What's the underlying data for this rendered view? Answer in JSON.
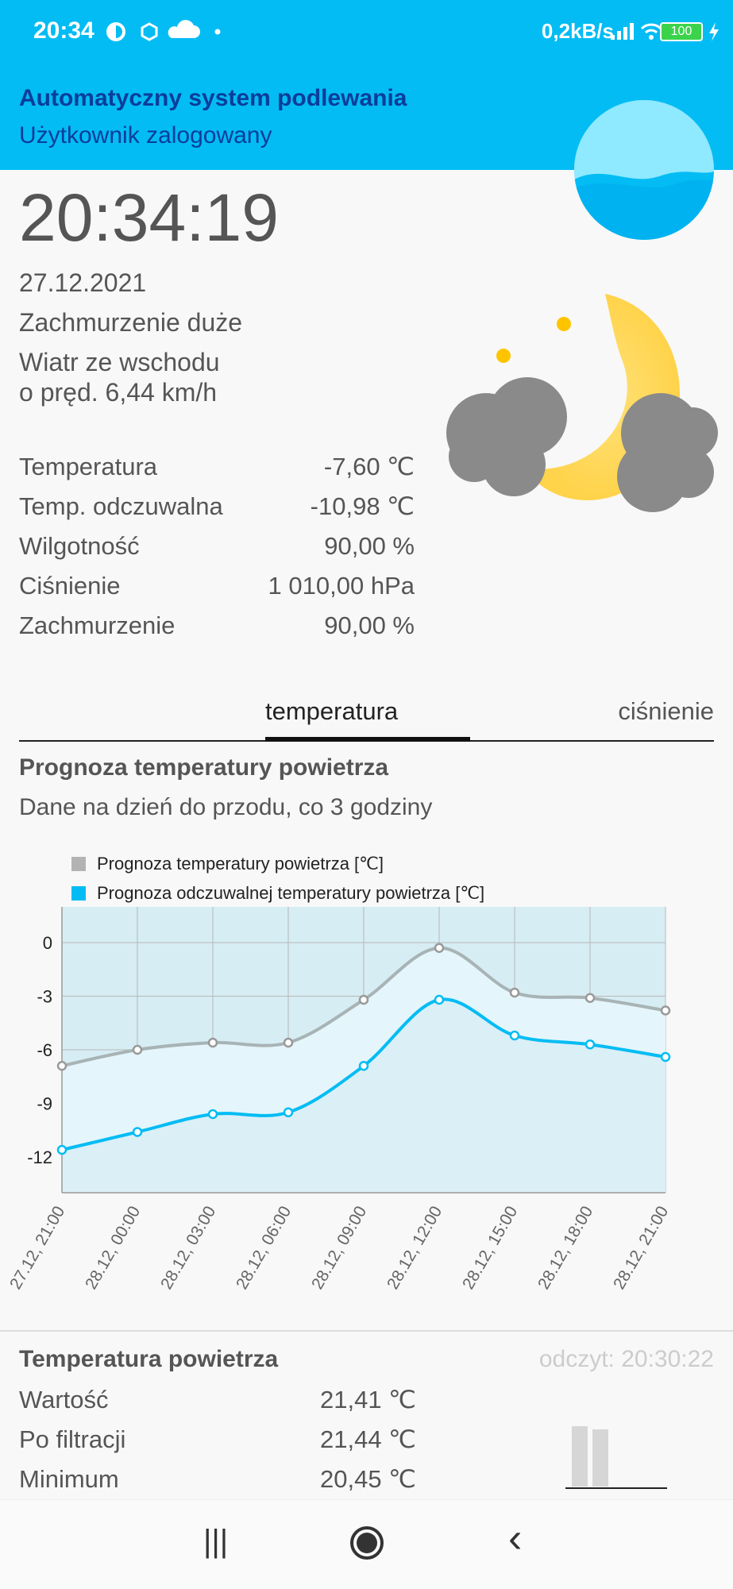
{
  "status_bar": {
    "time": "20:34",
    "net_speed": "0,2kB/s",
    "battery": "100"
  },
  "header": {
    "title": "Automatyczny system podlewania",
    "subtitle": "Użytkownik zalogowany"
  },
  "weather": {
    "clock": "20:34:19",
    "date": "27.12.2021",
    "cloudiness_desc": "Zachmurzenie duże",
    "wind_line1": "Wiatr ze wschodu",
    "wind_line2": "o pręd. 6,44 km/h",
    "rows": [
      {
        "label": "Temperatura",
        "value": "-7,60 ℃"
      },
      {
        "label": "Temp. odczuwalna",
        "value": "-10,98 ℃"
      },
      {
        "label": "Wilgotność",
        "value": "90,00 %"
      },
      {
        "label": "Ciśnienie",
        "value": "1 010,00 hPa"
      },
      {
        "label": "Zachmurzenie",
        "value": "90,00 %"
      }
    ],
    "icon": "night-cloudy-icon"
  },
  "tabs": {
    "active": "temperatura",
    "inactive": "ciśnienie"
  },
  "chart_section": {
    "title": "Prognoza temperatury powietrza",
    "subtitle": "Dane na dzień do przodu, co 3 godziny"
  },
  "chart_data": {
    "type": "line",
    "x": [
      "27.12, 21:00",
      "28.12, 00:00",
      "28.12, 03:00",
      "28.12, 06:00",
      "28.12, 09:00",
      "28.12, 12:00",
      "28.12, 15:00",
      "28.12, 18:00",
      "28.12, 21:00"
    ],
    "series": [
      {
        "name": "Prognoza temperatury powietrza [℃]",
        "color": "#b3b3b3",
        "values": [
          -6.9,
          -6.0,
          -5.6,
          -5.6,
          -3.2,
          -0.3,
          -2.8,
          -3.1,
          -3.8
        ]
      },
      {
        "name": "Prognoza odczuwalnej temperatury powietrza [℃]",
        "color": "#03bcf4",
        "values": [
          -11.6,
          -10.6,
          -9.6,
          -9.5,
          -6.9,
          -3.2,
          -5.2,
          -5.7,
          -6.4
        ]
      }
    ],
    "yticks": [
      0,
      -3,
      -6,
      -9,
      -12
    ],
    "ylim": [
      -14,
      2
    ],
    "grid": true,
    "legend": "top-left"
  },
  "reading": {
    "title": "Temperatura powietrza",
    "timestamp": "odczyt: 20:30:22",
    "rows": [
      {
        "label": "Wartość",
        "value": "21,41 ℃"
      },
      {
        "label": "Po filtracji",
        "value": "21,44 ℃"
      },
      {
        "label": "Minimum",
        "value": "20,45 ℃"
      }
    ]
  },
  "nav": {
    "recent": "|||",
    "back": "‹"
  }
}
